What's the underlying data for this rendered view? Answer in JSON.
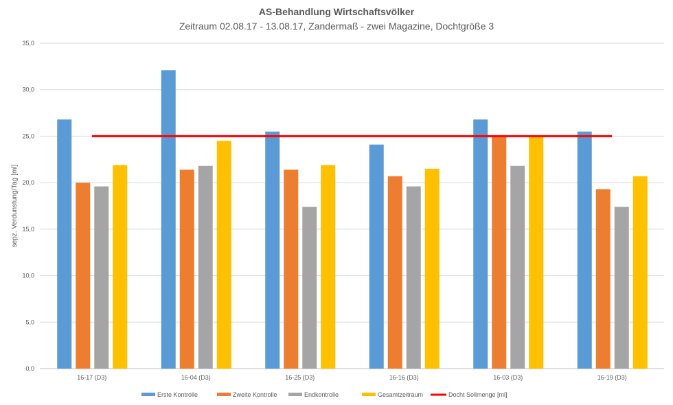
{
  "chart_data": {
    "type": "bar",
    "title": "AS-Behandlung Wirtschaftsvölker",
    "subtitle": "Zeitraum 02.08.17 - 13.08.17, Zandermaß - zwei Magazine, Dochtgröße 3",
    "xlabel": "",
    "ylabel": "sepz. Verdunstung/Tag [ml]",
    "ylim": [
      0,
      35
    ],
    "yticks": [
      "0,0",
      "5,0",
      "10,0",
      "15,0",
      "20,0",
      "25,0",
      "30,0",
      "35,0"
    ],
    "grid": true,
    "legend_position": "bottom",
    "categories": [
      "16-17 (D3)",
      "16-04 (D3)",
      "16-25 (D3)",
      "16-16 (D3)",
      "16-03 (D3)",
      "16-19 (D3)"
    ],
    "series": [
      {
        "name": "Erste Kontrolle",
        "color": "#5B9BD5",
        "values": [
          26.8,
          32.1,
          25.5,
          24.1,
          26.8,
          25.5
        ]
      },
      {
        "name": "Zweite Kontrolle",
        "color": "#ED7D31",
        "values": [
          20.0,
          21.4,
          21.4,
          20.7,
          25.0,
          19.3
        ]
      },
      {
        "name": "Endkontrolle",
        "color": "#A5A5A5",
        "values": [
          19.6,
          21.8,
          17.4,
          19.6,
          21.8,
          17.4
        ]
      },
      {
        "name": "Gesamtzeitraum",
        "color": "#FFC000",
        "values": [
          21.9,
          24.5,
          21.9,
          21.5,
          25.0,
          20.7
        ]
      }
    ],
    "line_series": {
      "name": "Docht Sollmenge [ml]",
      "color": "#FF0000",
      "values": [
        25,
        25,
        25,
        25,
        25,
        25
      ]
    }
  }
}
